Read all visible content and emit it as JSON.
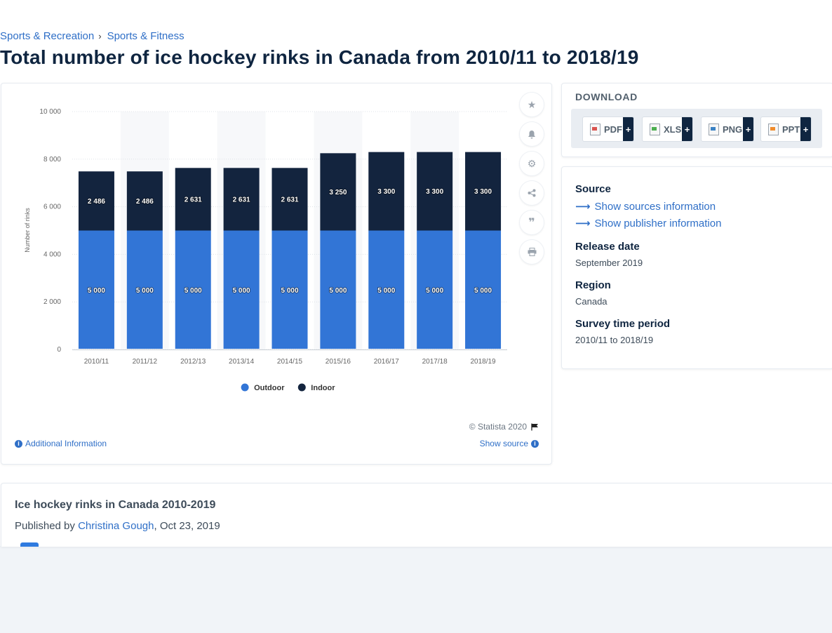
{
  "breadcrumb": {
    "items": [
      "Sports & Recreation",
      "Sports & Fitness"
    ]
  },
  "page_title": "Total number of ice hockey rinks in Canada from 2010/11 to 2018/19",
  "colors": {
    "outdoor": "#3275d6",
    "indoor": "#13243e",
    "link": "#2f6fc7"
  },
  "chart_data": {
    "type": "bar",
    "stacked": true,
    "title": "",
    "xlabel": "",
    "ylabel": "Number of rinks",
    "ylim": [
      0,
      10000
    ],
    "yticks": [
      "0",
      "2 000",
      "4 000",
      "6 000",
      "8 000",
      "10 000"
    ],
    "categories": [
      "2010/11",
      "2011/12",
      "2012/13",
      "2013/14",
      "2014/15",
      "2015/16",
      "2016/17",
      "2017/18",
      "2018/19"
    ],
    "series": [
      {
        "name": "Outdoor",
        "color": "#3275d6",
        "values": [
          5000,
          5000,
          5000,
          5000,
          5000,
          5000,
          5000,
          5000,
          5000
        ],
        "labels": [
          "5 000",
          "5 000",
          "5 000",
          "5 000",
          "5 000",
          "5 000",
          "5 000",
          "5 000",
          "5 000"
        ]
      },
      {
        "name": "Indoor",
        "color": "#13243e",
        "values": [
          2486,
          2486,
          2631,
          2631,
          2631,
          3250,
          3300,
          3300,
          3300
        ],
        "labels": [
          "2 486",
          "2 486",
          "2 631",
          "2 631",
          "2 631",
          "3 250",
          "3 300",
          "3 300",
          "3 300"
        ]
      }
    ],
    "grid": true,
    "legend": "bottom-center"
  },
  "chart_footer": {
    "copyright": "© Statista 2020",
    "additional_info": "Additional Information",
    "show_source": "Show source"
  },
  "side_tools": [
    "star-icon",
    "bell-icon",
    "gear-icon",
    "share-icon",
    "quote-icon",
    "print-icon"
  ],
  "download": {
    "heading": "DOWNLOAD",
    "formats": [
      {
        "label": "PDF",
        "icon": "pdf-file-icon",
        "plus": "+"
      },
      {
        "label": "XLS",
        "icon": "xls-file-icon",
        "plus": "+"
      },
      {
        "label": "PNG",
        "icon": "png-file-icon",
        "plus": "+"
      },
      {
        "label": "PPT",
        "icon": "ppt-file-icon",
        "plus": "+"
      }
    ]
  },
  "info": {
    "source_label": "Source",
    "show_sources": "Show sources information",
    "show_publisher": "Show publisher information",
    "release_label": "Release date",
    "release_value": "September 2019",
    "region_label": "Region",
    "region_value": "Canada",
    "period_label": "Survey time period",
    "period_value": "2010/11 to 2018/19"
  },
  "story": {
    "title": "Ice hockey rinks in Canada 2010-2019",
    "published_by": "Published by",
    "author": "Christina Gough",
    "date": ", Oct 23, 2019"
  }
}
